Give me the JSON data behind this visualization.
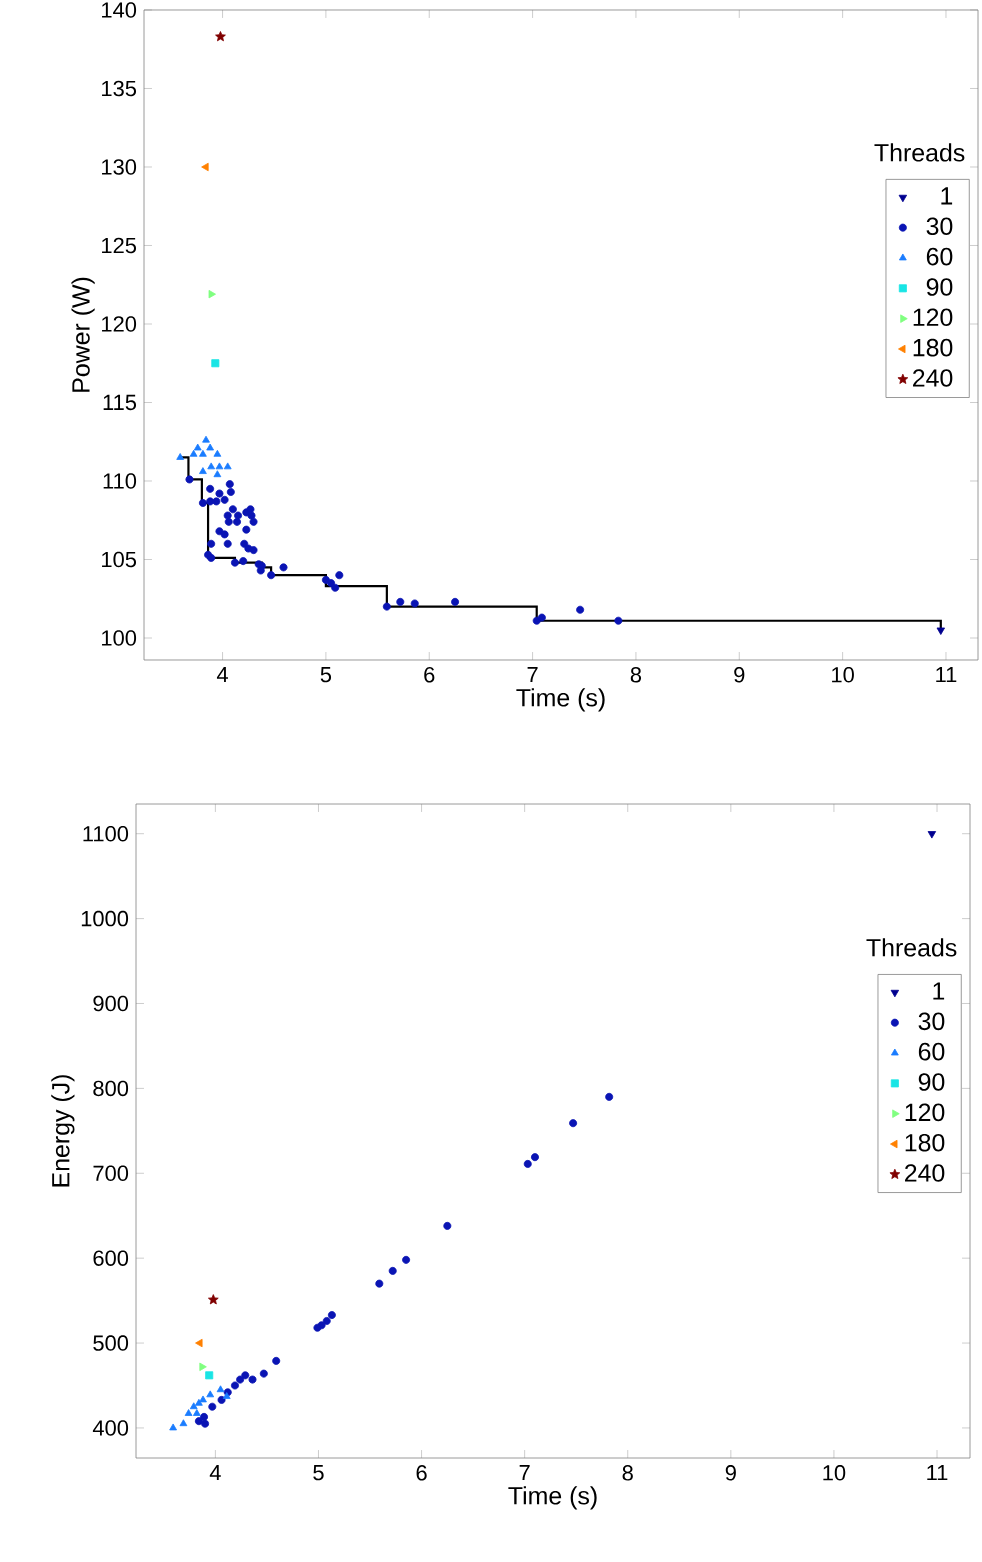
{
  "chart_data": [
    {
      "type": "scatter",
      "xlabel": "Time (s)",
      "ylabel": "Power (W)",
      "legend_title": "Threads",
      "legend": "right",
      "xlim": [
        3.24,
        11.31
      ],
      "ylim": [
        98.6,
        140
      ],
      "xticks": [
        4,
        5,
        6,
        7,
        8,
        9,
        10,
        11
      ],
      "yticks": [
        100,
        105,
        110,
        115,
        120,
        125,
        130,
        135,
        140
      ],
      "grid": false,
      "series": [
        {
          "name": "1",
          "color": "#00008f",
          "marker": "triangle-down",
          "x": [
            10.95
          ],
          "values": [
            100.5
          ]
        },
        {
          "name": "30",
          "color": "#0a14b4",
          "marker": "circle",
          "x": [
            3.68,
            3.81,
            3.88,
            3.97,
            4.07,
            4.08,
            3.88,
            3.94,
            4.02,
            4.1,
            4.05,
            4.15,
            4.23,
            4.28,
            4.27,
            4.3,
            4.14,
            4.06,
            4.23,
            3.97,
            4.02,
            4.05,
            3.89,
            4.21,
            4.25,
            4.3,
            3.86,
            3.89,
            4.2,
            4.12,
            4.35,
            4.38,
            4.37,
            4.47,
            4.59,
            5.0,
            5.05,
            5.09,
            5.13,
            5.59,
            5.72,
            5.86,
            6.25,
            7.04,
            7.09,
            7.46,
            7.83
          ],
          "values": [
            110.1,
            108.6,
            109.5,
            109.2,
            109.8,
            109.3,
            108.7,
            108.7,
            108.8,
            108.2,
            107.8,
            107.8,
            108.0,
            107.8,
            108.2,
            107.4,
            107.4,
            107.4,
            106.9,
            106.8,
            106.6,
            106.0,
            106.0,
            106.0,
            105.7,
            105.6,
            105.3,
            105.1,
            104.9,
            104.8,
            104.7,
            104.6,
            104.3,
            104.0,
            104.5,
            103.7,
            103.5,
            103.2,
            104.0,
            102.0,
            102.3,
            102.2,
            102.3,
            101.1,
            101.3,
            101.8,
            101.1
          ]
        },
        {
          "name": "60",
          "color": "#1a7cff",
          "marker": "triangle",
          "x": [
            3.59,
            3.72,
            3.76,
            3.84,
            3.88,
            3.95,
            3.81,
            3.89,
            3.97,
            4.05,
            3.81,
            3.95
          ],
          "values": [
            111.5,
            111.7,
            112.1,
            112.6,
            112.1,
            111.7,
            111.7,
            110.9,
            110.9,
            110.9,
            110.6,
            110.4
          ]
        },
        {
          "name": "90",
          "color": "#19e5e5",
          "marker": "square",
          "x": [
            3.93
          ],
          "values": [
            117.5
          ]
        },
        {
          "name": "120",
          "color": "#80ff80",
          "marker": "triangle-right",
          "x": [
            3.89
          ],
          "values": [
            121.9
          ]
        },
        {
          "name": "180",
          "color": "#ff8000",
          "marker": "triangle-left",
          "x": [
            3.84
          ],
          "values": [
            130.0
          ]
        },
        {
          "name": "240",
          "color": "#800000",
          "marker": "star",
          "x": [
            3.98
          ],
          "values": [
            138.3
          ]
        },
        {
          "type": "step",
          "color": "#000000",
          "marker": "none",
          "x": [
            3.59,
            3.67,
            3.8,
            3.86,
            4.12,
            4.38,
            4.47,
            5.0,
            5.59,
            7.04,
            10.95
          ],
          "values": [
            111.5,
            110.1,
            108.6,
            105.1,
            104.8,
            104.5,
            104.0,
            103.3,
            102.0,
            101.1,
            100.5
          ]
        }
      ]
    },
    {
      "type": "scatter",
      "xlabel": "Time (s)",
      "ylabel": "Energy (J)",
      "legend_title": "Threads",
      "legend": "right",
      "xlim": [
        3.23,
        11.32
      ],
      "ylim": [
        364.6,
        1135
      ],
      "xticks": [
        4,
        5,
        6,
        7,
        8,
        9,
        10,
        11
      ],
      "yticks": [
        400,
        500,
        600,
        700,
        800,
        900,
        1000,
        1100
      ],
      "grid": false,
      "series": [
        {
          "name": "1",
          "color": "#00008f",
          "marker": "triangle-down",
          "x": [
            10.95
          ],
          "values": [
            1100
          ]
        },
        {
          "name": "30",
          "color": "#0a14b4",
          "marker": "circle",
          "x": [
            7.82,
            7.47,
            7.1,
            7.03,
            6.25,
            5.85,
            5.72,
            5.59,
            5.13,
            5.08,
            5.03,
            4.99,
            4.59,
            4.47,
            4.36,
            4.29,
            4.24,
            4.19,
            4.12,
            4.06,
            3.97,
            3.84,
            3.89,
            3.9
          ],
          "values": [
            790,
            759,
            719,
            711,
            638,
            598,
            585,
            570,
            533,
            526,
            521,
            518,
            479,
            464,
            457,
            462,
            457,
            450,
            442,
            433,
            425,
            408,
            413,
            405
          ]
        },
        {
          "name": "60",
          "color": "#1a7cff",
          "marker": "triangle",
          "x": [
            3.59,
            3.69,
            3.74,
            3.79,
            3.84,
            3.88,
            3.95,
            4.05,
            4.11,
            3.82
          ],
          "values": [
            400,
            405,
            417,
            425,
            429,
            433,
            439,
            445,
            437,
            417
          ]
        },
        {
          "name": "90",
          "color": "#19e5e5",
          "marker": "square",
          "x": [
            3.94
          ],
          "values": [
            462
          ]
        },
        {
          "name": "120",
          "color": "#80ff80",
          "marker": "triangle-right",
          "x": [
            3.87
          ],
          "values": [
            472
          ]
        },
        {
          "name": "180",
          "color": "#ff8000",
          "marker": "triangle-left",
          "x": [
            3.85
          ],
          "values": [
            500
          ]
        },
        {
          "name": "240",
          "color": "#800000",
          "marker": "star",
          "x": [
            3.98
          ],
          "values": [
            551
          ]
        }
      ]
    }
  ]
}
